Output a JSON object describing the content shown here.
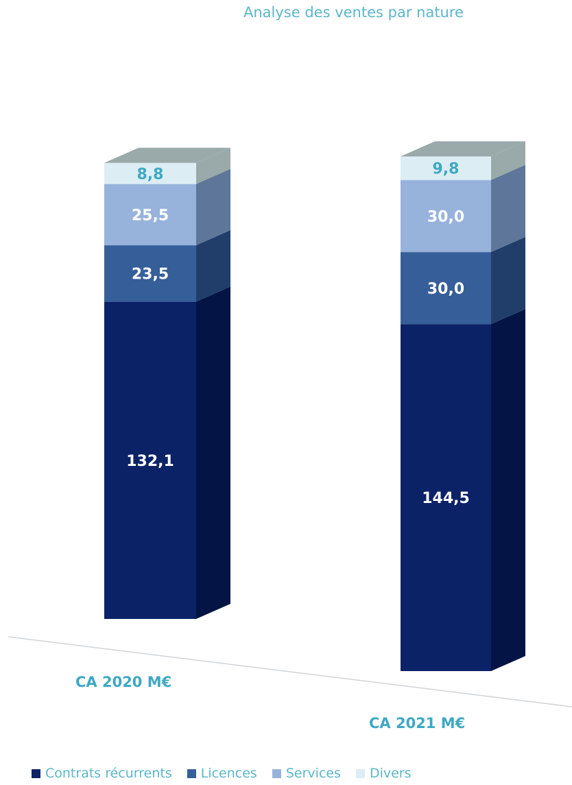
{
  "chart_data": {
    "type": "bar",
    "stacked": true,
    "title": "Analyse des ventes par nature",
    "categories": [
      "CA 2020 M€",
      "CA 2021 M€"
    ],
    "series": [
      {
        "name": "Contrats récurrents",
        "values": [
          132.1,
          144.5
        ],
        "labels": [
          "132,1",
          "144,5"
        ],
        "color": "#0b2266"
      },
      {
        "name": "Licences",
        "values": [
          23.5,
          30.0
        ],
        "labels": [
          "23,5",
          "30,0"
        ],
        "color": "#365e99"
      },
      {
        "name": "Services",
        "values": [
          25.5,
          30.0
        ],
        "labels": [
          "25,5",
          "30,0"
        ],
        "color": "#97b3dc"
      },
      {
        "name": "Divers",
        "values": [
          8.8,
          9.8
        ],
        "labels": [
          "8,8",
          "9,8"
        ],
        "color": "#dcedf4"
      }
    ],
    "legend_position": "bottom",
    "grid": false
  }
}
